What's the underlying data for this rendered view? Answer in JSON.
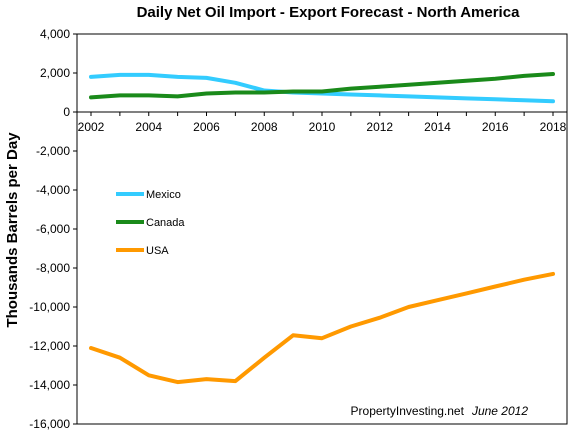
{
  "chart_data": {
    "type": "line",
    "title": "Daily Net Oil Import - Export Forecast  - North America",
    "ylabel": "Thousands Barrels per Day",
    "xlabel": "",
    "xlim": [
      2002,
      2018
    ],
    "ylim": [
      -16000,
      4000
    ],
    "x_ticks": [
      2002,
      2004,
      2006,
      2008,
      2010,
      2012,
      2014,
      2016,
      2018
    ],
    "y_ticks": [
      4000,
      2000,
      0,
      -2000,
      -4000,
      -6000,
      -8000,
      -10000,
      -12000,
      -14000,
      -16000
    ],
    "x_tick_labels": [
      "2002",
      "2004",
      "2006",
      "2008",
      "2010",
      "2012",
      "2014",
      "2016",
      "2018"
    ],
    "y_tick_labels": [
      "4,000",
      "2,000",
      "0",
      "-2,000",
      "-4,000",
      "-6,000",
      "-8,000",
      "-10,000",
      "-12,000",
      "-14,000",
      "-16,000"
    ],
    "grid": false,
    "legend_position": "left-middle",
    "x": [
      2002,
      2003,
      2004,
      2005,
      2006,
      2007,
      2008,
      2009,
      2010,
      2011,
      2012,
      2013,
      2014,
      2015,
      2016,
      2017,
      2018
    ],
    "series": [
      {
        "name": "Mexico",
        "color": "#33CCFF",
        "values": [
          1800,
          1900,
          1900,
          1800,
          1750,
          1500,
          1100,
          1000,
          950,
          900,
          850,
          800,
          750,
          700,
          650,
          600,
          550
        ]
      },
      {
        "name": "Canada",
        "color": "#1A8A1A",
        "values": [
          750,
          850,
          850,
          800,
          950,
          1000,
          1000,
          1050,
          1050,
          1200,
          1300,
          1400,
          1500,
          1600,
          1700,
          1850,
          1950
        ]
      },
      {
        "name": "USA",
        "color": "#FF9900",
        "values": [
          -12100,
          -12600,
          -13500,
          -13850,
          -13700,
          -13800,
          -12600,
          -11450,
          -11600,
          -11000,
          -10550,
          -10000,
          -9650,
          -9300,
          -8950,
          -8600,
          -8300
        ]
      }
    ],
    "annotation": {
      "source": "PropertyInvesting.net",
      "date": "June 2012"
    }
  }
}
